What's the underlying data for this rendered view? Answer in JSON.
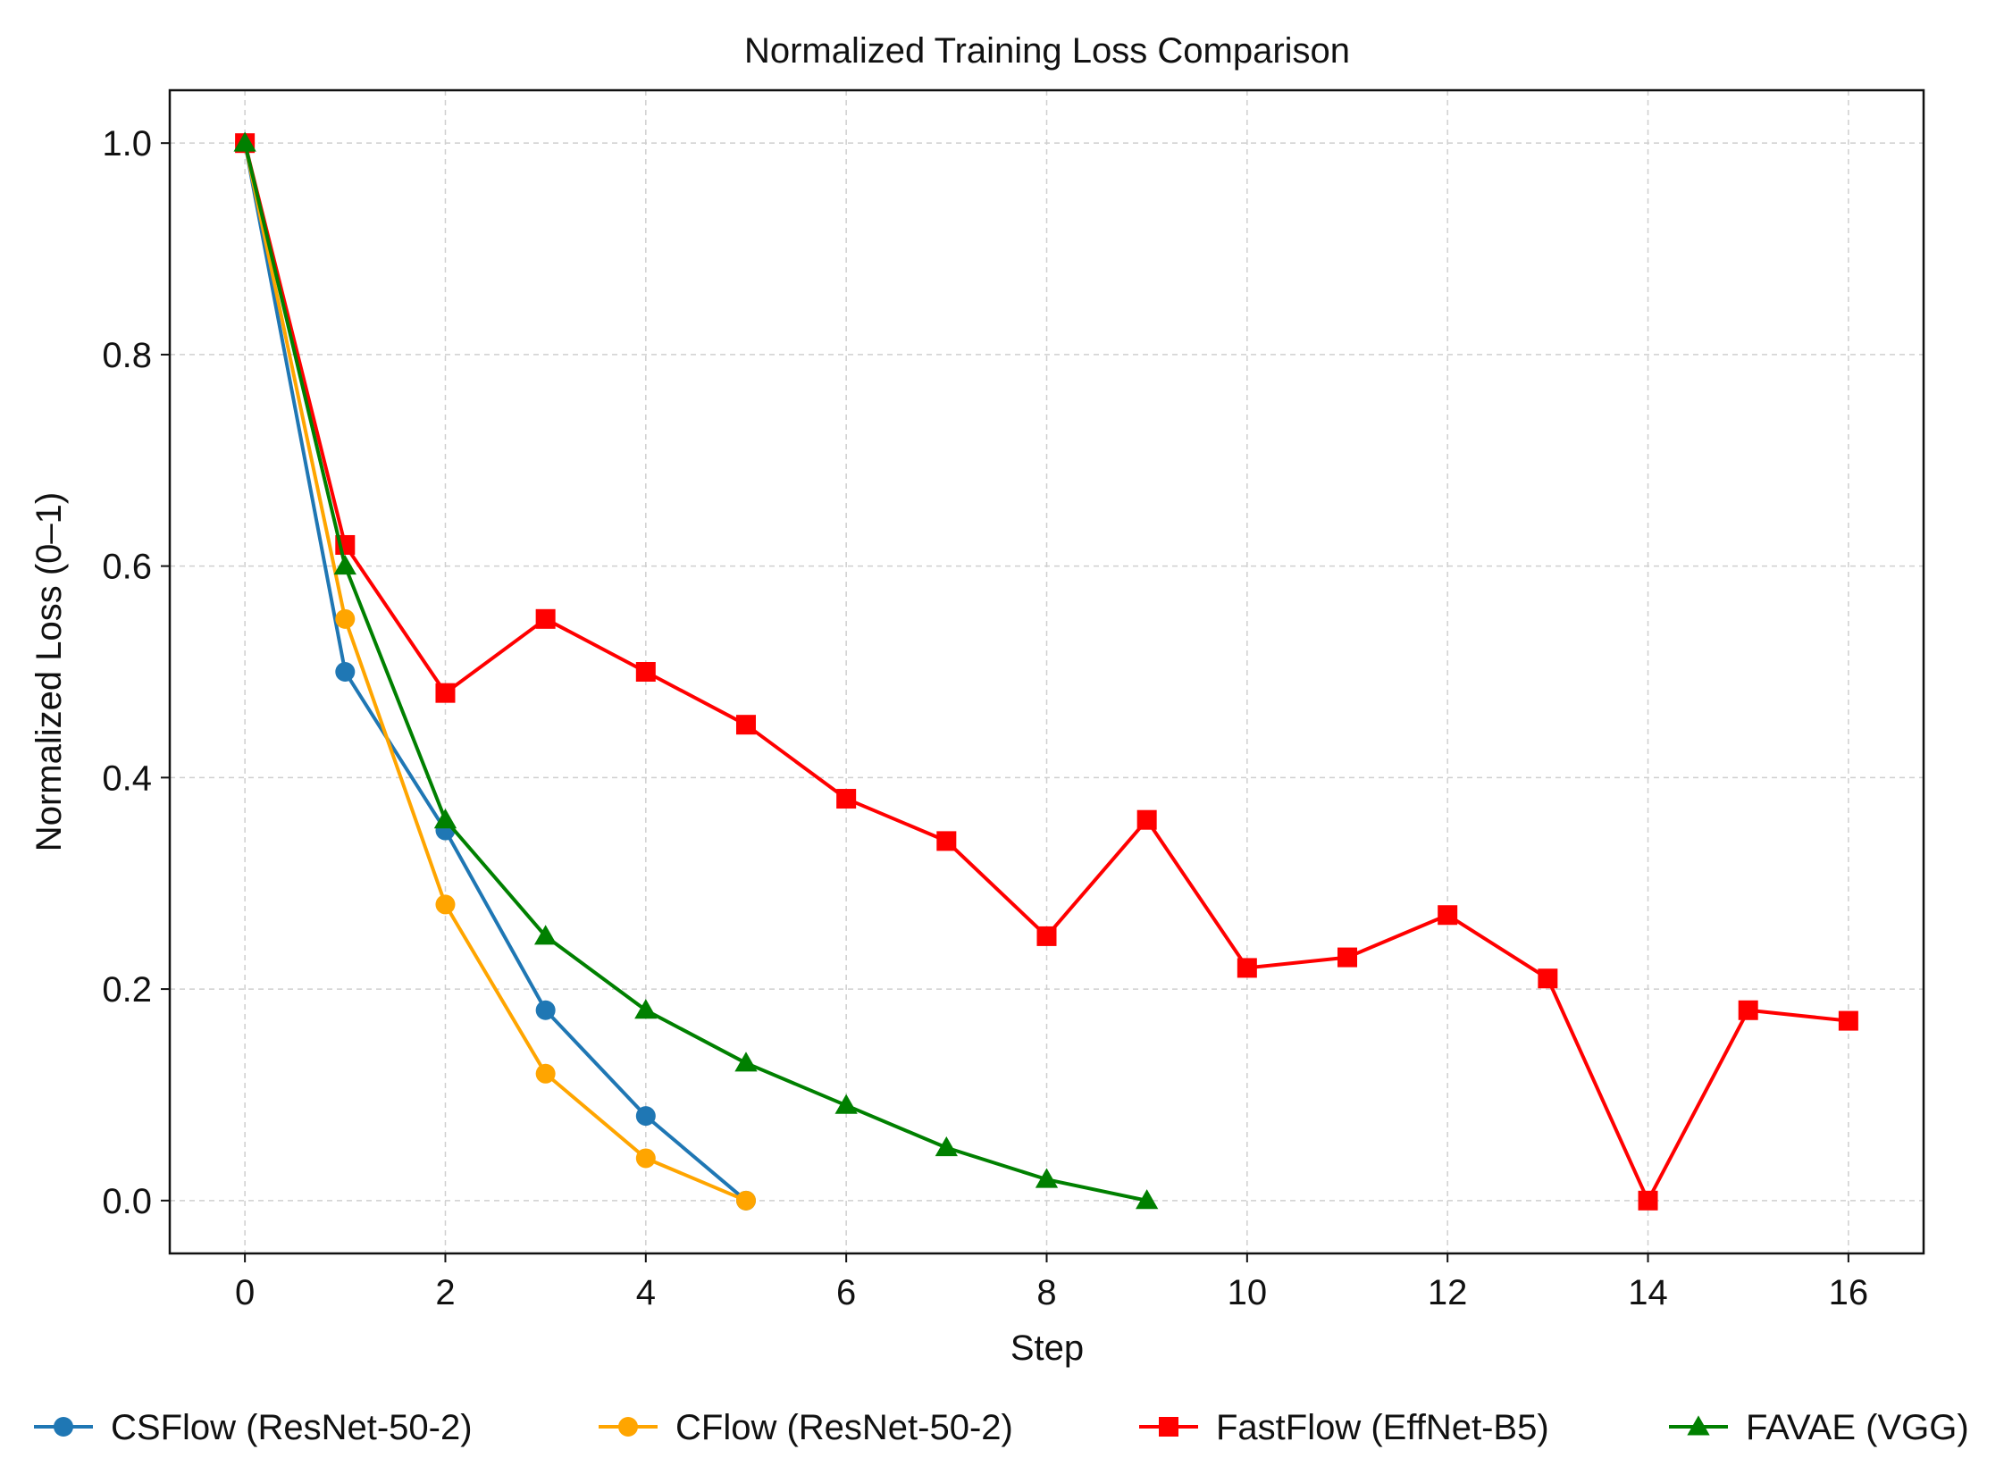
{
  "chart_data": {
    "type": "line",
    "title": "Normalized Training Loss Comparison",
    "xlabel": "Step",
    "ylabel": "Normalized Loss (0–1)",
    "xlim": [
      -0.75,
      16.75
    ],
    "ylim": [
      -0.05,
      1.05
    ],
    "xticks": [
      0,
      2,
      4,
      6,
      8,
      10,
      12,
      14,
      16
    ],
    "xtick_labels": [
      "0",
      "2",
      "4",
      "6",
      "8",
      "10",
      "12",
      "14",
      "16"
    ],
    "yticks": [
      0.0,
      0.2,
      0.4,
      0.6,
      0.8,
      1.0
    ],
    "ytick_labels": [
      "0.0",
      "0.2",
      "0.4",
      "0.6",
      "0.8",
      "1.0"
    ],
    "grid": true,
    "legend_position": "bottom",
    "series": [
      {
        "name": "CSFlow (ResNet-50-2)",
        "color": "#1f77b4",
        "marker": "circle",
        "x": [
          0,
          1,
          2,
          3,
          4,
          5
        ],
        "y": [
          1.0,
          0.5,
          0.35,
          0.18,
          0.08,
          0.0
        ]
      },
      {
        "name": "CFlow (ResNet-50-2)",
        "color": "#ffa500",
        "marker": "circle",
        "x": [
          0,
          1,
          2,
          3,
          4,
          5
        ],
        "y": [
          1.0,
          0.55,
          0.28,
          0.12,
          0.04,
          0.0
        ]
      },
      {
        "name": "FastFlow (EffNet-B5)",
        "color": "#ff0000",
        "marker": "square",
        "x": [
          0,
          1,
          2,
          3,
          4,
          5,
          6,
          7,
          8,
          9,
          10,
          11,
          12,
          13,
          14,
          15,
          16
        ],
        "y": [
          1.0,
          0.62,
          0.48,
          0.55,
          0.5,
          0.45,
          0.38,
          0.34,
          0.25,
          0.36,
          0.22,
          0.23,
          0.27,
          0.21,
          0.0,
          0.18,
          0.17
        ]
      },
      {
        "name": "FAVAE (VGG)",
        "color": "#008000",
        "marker": "triangle",
        "x": [
          0,
          1,
          2,
          3,
          4,
          5,
          6,
          7,
          8,
          9
        ],
        "y": [
          1.0,
          0.6,
          0.36,
          0.25,
          0.18,
          0.13,
          0.09,
          0.05,
          0.02,
          0.0
        ]
      }
    ]
  }
}
